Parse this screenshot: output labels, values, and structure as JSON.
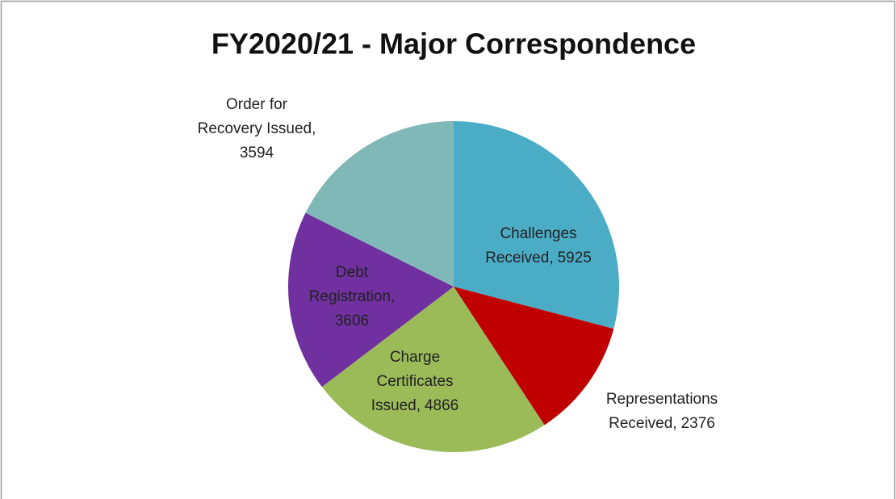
{
  "chart_data": {
    "type": "pie",
    "title": "FY2020/21 - Major Correspondence",
    "categories": [
      "Challenges Received",
      "Representations Received",
      "Charge Certificates Issued",
      "Debt Registration",
      "Order for Recovery Issued"
    ],
    "values": [
      5925,
      2376,
      4866,
      3606,
      3594
    ],
    "colors": [
      "#4bacc6",
      "#c00000",
      "#9bbb59",
      "#7030a0",
      "#7fb8b7"
    ]
  }
}
